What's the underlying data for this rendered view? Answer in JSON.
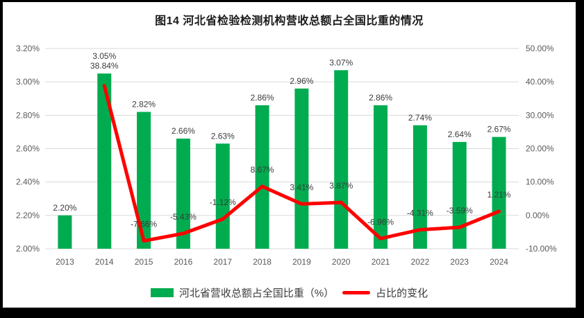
{
  "figure": {
    "title": "图14 河北省检验检测机构营收总额占全国比重的情况"
  },
  "colors": {
    "bar": "#00AC4F",
    "line": "#FF0000",
    "grid": "#D9D9D9",
    "axis_text": "#595959",
    "data_label": "#3b3b3b",
    "frame": "#000000",
    "background": "#FFFFFF"
  },
  "chart_data": {
    "type": "bar+line",
    "title": "图14 河北省检验检测机构营收总额占全国比重的情况",
    "categories": [
      "2013",
      "2014",
      "2015",
      "2016",
      "2017",
      "2018",
      "2019",
      "2020",
      "2021",
      "2022",
      "2023",
      "2024"
    ],
    "series": [
      {
        "name": "河北省营收总额占全国比重（%）",
        "type": "bar",
        "axis": "left",
        "color": "#00AC4F",
        "values": [
          2.2,
          3.05,
          2.82,
          2.66,
          2.63,
          2.86,
          2.96,
          3.07,
          2.86,
          2.74,
          2.64,
          2.67
        ],
        "labels": [
          "2.20%",
          "3.05%",
          "2.82%",
          "2.66%",
          "2.63%",
          "2.86%",
          "2.96%",
          "3.07%",
          "2.86%",
          "2.74%",
          "2.64%",
          "2.67%"
        ]
      },
      {
        "name": "占比的变化",
        "type": "line",
        "axis": "right",
        "color": "#FF0000",
        "values": [
          null,
          38.84,
          -7.66,
          -5.43,
          -1.12,
          8.67,
          3.41,
          3.87,
          -6.96,
          -4.31,
          -3.59,
          1.21
        ],
        "labels": [
          null,
          "38.84%",
          "-7.66%",
          "-5.43%",
          "-1.12%",
          "8.67%",
          "3.41%",
          "3.87%",
          "-6.96%",
          "-4.31%",
          "-3.59%",
          "1.21%"
        ]
      }
    ],
    "left_axis": {
      "min": 2.0,
      "max": 3.2,
      "step": 0.2,
      "ticks": [
        "3.20%",
        "3.00%",
        "2.80%",
        "2.60%",
        "2.40%",
        "2.20%",
        "2.00%"
      ]
    },
    "right_axis": {
      "min": -10,
      "max": 50,
      "step": 10,
      "ticks": [
        "50.00%",
        "40.00%",
        "30.00%",
        "20.00%",
        "10.00%",
        "0.00%",
        "-10.00%"
      ]
    },
    "grid": true,
    "legend_position": "bottom"
  }
}
